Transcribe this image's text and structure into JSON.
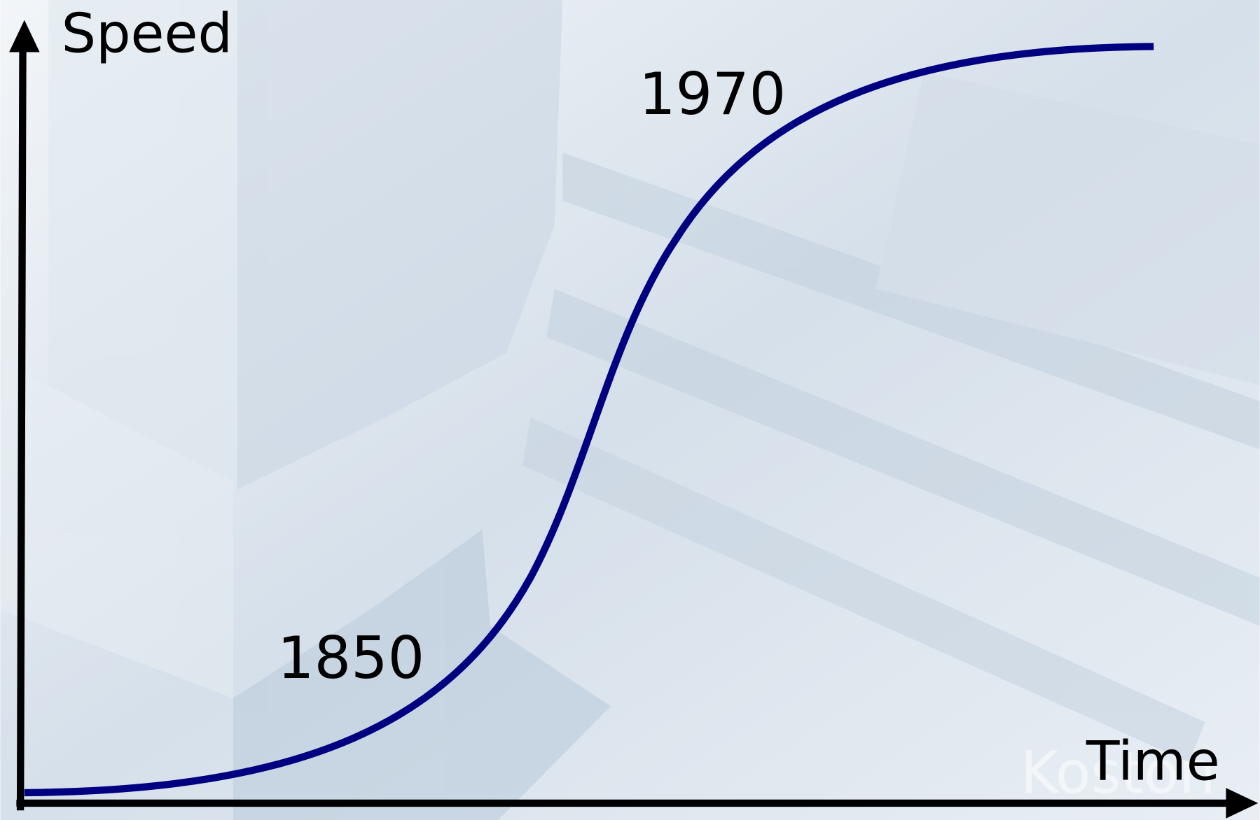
{
  "axes": {
    "y_label": "Speed",
    "x_label": "Time"
  },
  "annotations": [
    "1850",
    "1970"
  ],
  "watermark": "Koston"
}
